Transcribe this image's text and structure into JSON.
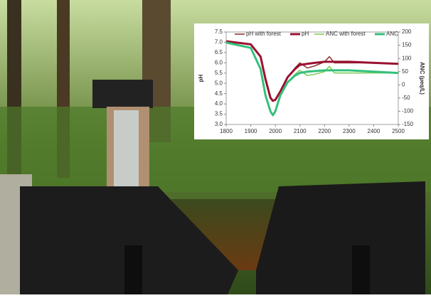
{
  "chart_data": {
    "type": "line",
    "ylabel": "pH",
    "y2label": "ANC (µeq/L)",
    "x": [
      1800,
      1900,
      1940,
      1960,
      1980,
      1990,
      2000,
      2020,
      2050,
      2080,
      2100,
      2130,
      2160,
      2200,
      2220,
      2240,
      2300,
      2400,
      2500
    ],
    "xlim": [
      1800,
      2500
    ],
    "xticks": [
      1800,
      1900,
      2000,
      2100,
      2200,
      2300,
      2400,
      2500
    ],
    "ylim": [
      3,
      7.5
    ],
    "yticks": [
      {
        "value": 3,
        "label": "3.0"
      },
      3.5,
      {
        "value": 4,
        "label": "4.0"
      },
      4.5,
      {
        "value": 5,
        "label": "5.0"
      },
      5.5,
      {
        "value": 6,
        "label": "6.0"
      },
      6.5,
      {
        "value": 7,
        "label": "7.0"
      },
      7.5
    ],
    "y2lim": [
      -150,
      200
    ],
    "y2ticks": [
      -150,
      -100,
      -50,
      0,
      50,
      100,
      150,
      200
    ],
    "legend": "top",
    "series": [
      {
        "name": "pH with forest",
        "color": "#8b2a2a",
        "line_width": 1.5,
        "values": [
          7.05,
          6.9,
          6.3,
          5.2,
          4.3,
          4.15,
          4.2,
          4.6,
          5.3,
          5.75,
          6.0,
          5.75,
          5.85,
          6.05,
          6.3,
          6.0,
          6.0,
          6.0,
          5.95
        ]
      },
      {
        "name": "pH",
        "color": "#9b1030",
        "line_width": 3,
        "values": [
          7.05,
          6.9,
          6.3,
          5.2,
          4.3,
          4.15,
          4.2,
          4.6,
          5.3,
          5.7,
          5.9,
          5.95,
          6.0,
          6.05,
          6.05,
          6.05,
          6.05,
          6.0,
          5.95
        ]
      },
      {
        "name": "ANC with forest",
        "color": "#77cc55",
        "line_width": 1.5,
        "axis": "y2",
        "values": [
          160,
          140,
          60,
          -40,
          -100,
          -115,
          -100,
          -40,
          10,
          40,
          55,
          35,
          40,
          50,
          70,
          45,
          45,
          45,
          45
        ]
      },
      {
        "name": "ANC",
        "color": "#33c07a",
        "line_width": 3,
        "axis": "y2",
        "values": [
          160,
          140,
          60,
          -40,
          -100,
          -115,
          -100,
          -40,
          10,
          35,
          45,
          50,
          52,
          55,
          55,
          55,
          55,
          50,
          45
        ]
      }
    ]
  }
}
